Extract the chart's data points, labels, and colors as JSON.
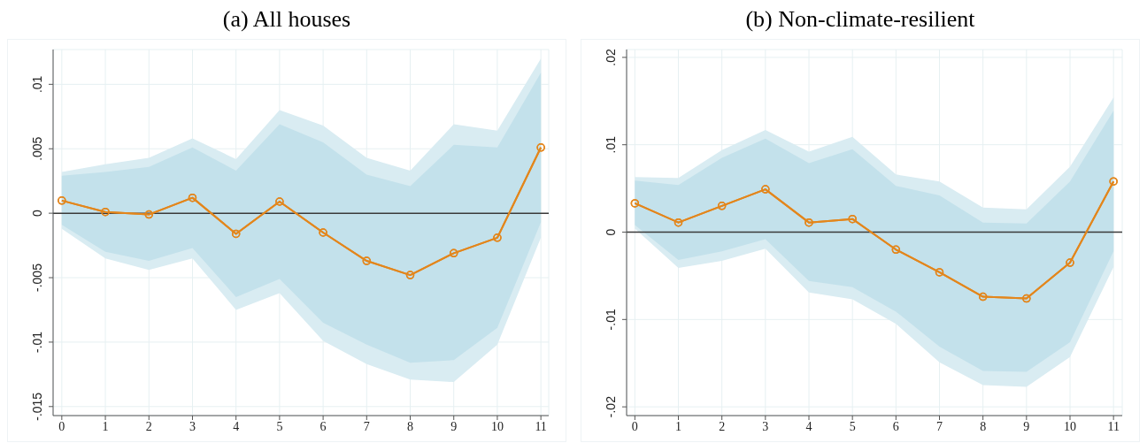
{
  "chart_data": [
    {
      "type": "line",
      "title": "(a) All houses",
      "x": [
        0,
        1,
        2,
        3,
        4,
        5,
        6,
        7,
        8,
        9,
        10,
        11
      ],
      "xlim": [
        -0.2,
        11.18
      ],
      "xticks": [
        0,
        1,
        2,
        3,
        4,
        5,
        6,
        7,
        8,
        9,
        10,
        11
      ],
      "ylim": [
        -0.0157,
        0.0127
      ],
      "yticks": [
        {
          "value": -0.015,
          "label": "-.015"
        },
        {
          "value": -0.01,
          "label": "-.01"
        },
        {
          "value": -0.005,
          "label": "-.005"
        },
        0,
        {
          "value": 0.005,
          "label": ".005"
        },
        {
          "value": 0.01,
          "label": ".01"
        }
      ],
      "grid": true,
      "marker": "circle",
      "ref_lines": [
        {
          "axis": "y",
          "value": 0,
          "color": "#3a3a3a"
        }
      ],
      "series": [
        {
          "color": "#e3861c",
          "values": [
            0.00098,
            0.0001,
            -0.0001,
            0.0012,
            -0.0016,
            0.0009,
            -0.0015,
            -0.0037,
            -0.0048,
            -0.0031,
            -0.0019,
            0.0051
          ],
          "lower": [
            -0.0012,
            -0.0035,
            -0.0044,
            -0.0035,
            -0.0075,
            -0.0062,
            -0.0099,
            -0.0117,
            -0.0129,
            -0.0131,
            -0.0102,
            -0.0019
          ],
          "upper": [
            0.0032,
            0.0038,
            0.0043,
            0.0058,
            0.0042,
            0.008,
            0.0068,
            0.0043,
            0.0033,
            0.0069,
            0.0064,
            0.012
          ]
        },
        {
          "color": "#e3861c",
          "values": [
            0.00098,
            0.0001,
            -0.0001,
            0.0012,
            -0.0016,
            0.0009,
            -0.0015,
            -0.0037,
            -0.0048,
            -0.0031,
            -0.0019,
            0.0051
          ],
          "lower": [
            -0.0009,
            -0.003,
            -0.0037,
            -0.0027,
            -0.0065,
            -0.0051,
            -0.0085,
            -0.0102,
            -0.0116,
            -0.0114,
            -0.0089,
            -0.0007
          ],
          "upper": [
            0.0029,
            0.0032,
            0.0036,
            0.0051,
            0.0033,
            0.0069,
            0.0055,
            0.003,
            0.0021,
            0.0053,
            0.0051,
            0.0109
          ]
        }
      ]
    },
    {
      "type": "line",
      "title": "(b) Non-climate-resilient",
      "x": [
        0,
        1,
        2,
        3,
        4,
        5,
        6,
        7,
        8,
        9,
        10,
        11
      ],
      "xlim": [
        -0.19,
        11.2
      ],
      "xticks": [
        0,
        1,
        2,
        3,
        4,
        5,
        6,
        7,
        8,
        9,
        10,
        11
      ],
      "ylim": [
        -0.021,
        0.0209
      ],
      "yticks": [
        {
          "value": -0.02,
          "label": "-.02"
        },
        {
          "value": -0.01,
          "label": "-.01"
        },
        0,
        {
          "value": 0.01,
          "label": ".01"
        },
        {
          "value": 0.02,
          "label": ".02"
        }
      ],
      "grid": true,
      "marker": "circle",
      "ref_lines": [
        {
          "axis": "y",
          "value": 0,
          "color": "#3a3a3a"
        }
      ],
      "series": [
        {
          "color": "#e3861c",
          "values": [
            0.0033,
            0.0011,
            0.003,
            0.0049,
            0.0011,
            0.0015,
            -0.002,
            -0.0046,
            -0.0074,
            -0.0076,
            -0.0035,
            0.0058
          ],
          "lower": [
            0.0004,
            -0.0041,
            -0.0033,
            -0.0019,
            -0.0069,
            -0.0077,
            -0.0105,
            -0.0149,
            -0.0175,
            -0.0177,
            -0.0143,
            -0.004
          ],
          "upper": [
            0.0063,
            0.0062,
            0.0094,
            0.0117,
            0.0092,
            0.0109,
            0.0066,
            0.0058,
            0.0028,
            0.0026,
            0.0075,
            0.0154
          ]
        },
        {
          "color": "#e3861c",
          "values": [
            0.0033,
            0.0011,
            0.003,
            0.0049,
            0.0011,
            0.0015,
            -0.002,
            -0.0046,
            -0.0074,
            -0.0076,
            -0.0035,
            0.0058
          ],
          "lower": [
            0.0008,
            -0.0032,
            -0.0022,
            -0.0008,
            -0.0056,
            -0.0063,
            -0.0091,
            -0.0131,
            -0.0159,
            -0.016,
            -0.0126,
            -0.0022
          ],
          "upper": [
            0.0059,
            0.0054,
            0.0085,
            0.0107,
            0.0079,
            0.0095,
            0.0053,
            0.0042,
            0.0011,
            0.001,
            0.0058,
            0.0139
          ]
        }
      ]
    }
  ]
}
